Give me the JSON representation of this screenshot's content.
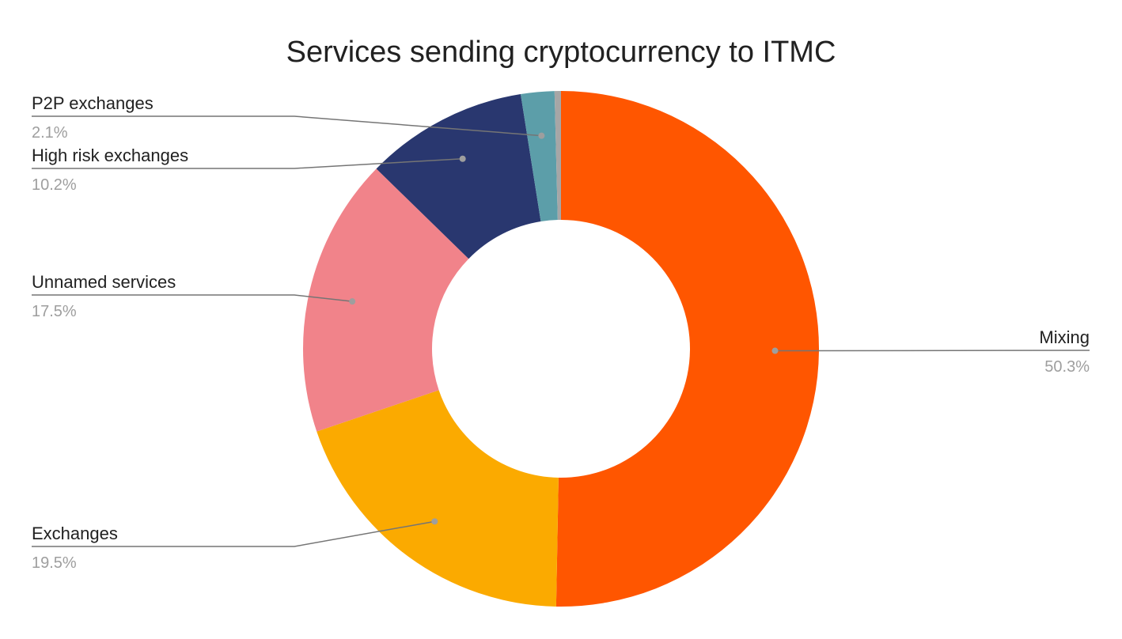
{
  "chart_data": {
    "type": "pie",
    "variant": "donut",
    "title": "Services sending cryptocurrency to ITMC",
    "slices": [
      {
        "name": "Mixing",
        "value": 50.3,
        "label": "50.3%",
        "color": "#ff5600"
      },
      {
        "name": "Exchanges",
        "value": 19.5,
        "label": "19.5%",
        "color": "#fbaa00"
      },
      {
        "name": "Unnamed services",
        "value": 17.5,
        "label": "17.5%",
        "color": "#f1838a"
      },
      {
        "name": "High risk exchanges",
        "value": 10.2,
        "label": "10.2%",
        "color": "#29376f"
      },
      {
        "name": "P2P exchanges",
        "value": 2.1,
        "label": "2.1%",
        "color": "#5c9ea9"
      },
      {
        "name": "",
        "value": 0.4,
        "label": "",
        "color": "#a6a6a6"
      }
    ],
    "leader_line_color": "#757575"
  }
}
